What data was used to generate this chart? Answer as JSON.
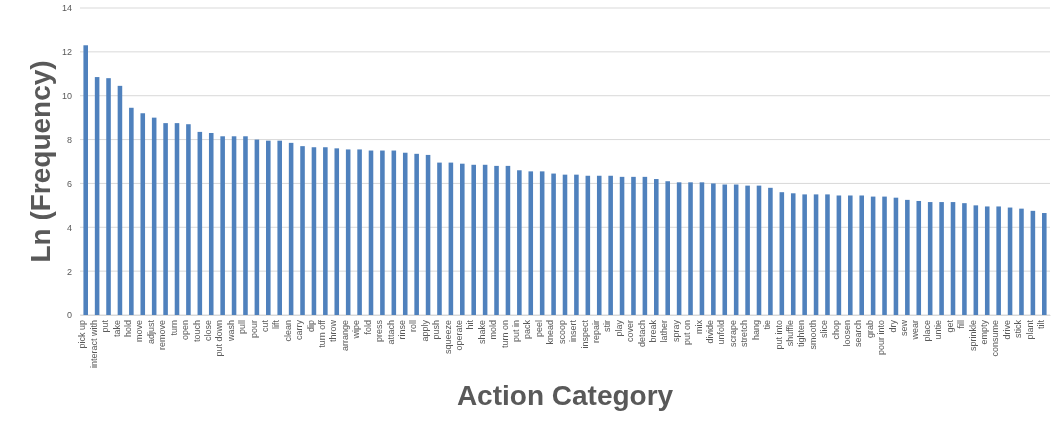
{
  "chart_data": {
    "type": "bar",
    "xlabel": "Action Category",
    "ylabel": "Ln (Frequency)",
    "categories": [
      "pick up",
      "interact with",
      "put",
      "take",
      "hold",
      "move",
      "adjust",
      "remove",
      "turn",
      "open",
      "touch",
      "close",
      "put down",
      "wash",
      "pull",
      "pour",
      "cut",
      "lift",
      "clean",
      "carry",
      "dip",
      "turn off",
      "throw",
      "arrange",
      "wipe",
      "fold",
      "press",
      "attach",
      "rinse",
      "roll",
      "apply",
      "push",
      "squeeze",
      "operate",
      "hit",
      "shake",
      "mold",
      "turn on",
      "put in",
      "pack",
      "peel",
      "knead",
      "scoop",
      "insert",
      "inspect",
      "repair",
      "stir",
      "play",
      "cover",
      "detach",
      "break",
      "lather",
      "spray",
      "put on",
      "mix",
      "divide",
      "unfold",
      "scrape",
      "stretch",
      "hang",
      "tie",
      "put into",
      "shuffle",
      "tighten",
      "smooth",
      "slice",
      "chop",
      "loosen",
      "search",
      "grab",
      "pour into",
      "dry",
      "sew",
      "wear",
      "place",
      "untie",
      "get",
      "fill",
      "sprinkle",
      "empty",
      "consume",
      "drive",
      "stick",
      "plant",
      "tilt"
    ],
    "values": [
      12.3,
      10.85,
      10.8,
      10.45,
      9.45,
      9.2,
      9.0,
      8.75,
      8.75,
      8.7,
      8.35,
      8.3,
      8.15,
      8.15,
      8.15,
      8.0,
      7.95,
      7.95,
      7.85,
      7.7,
      7.65,
      7.65,
      7.6,
      7.55,
      7.55,
      7.5,
      7.5,
      7.5,
      7.4,
      7.35,
      7.3,
      6.95,
      6.95,
      6.9,
      6.85,
      6.85,
      6.8,
      6.8,
      6.6,
      6.55,
      6.55,
      6.45,
      6.4,
      6.4,
      6.35,
      6.35,
      6.35,
      6.3,
      6.3,
      6.3,
      6.2,
      6.1,
      6.05,
      6.05,
      6.05,
      6.0,
      5.95,
      5.95,
      5.9,
      5.9,
      5.8,
      5.6,
      5.55,
      5.5,
      5.5,
      5.5,
      5.45,
      5.45,
      5.45,
      5.4,
      5.4,
      5.35,
      5.25,
      5.2,
      5.15,
      5.15,
      5.15,
      5.1,
      5.0,
      4.95,
      4.95,
      4.9,
      4.85,
      4.75,
      4.65
    ],
    "color": "#4f81bd",
    "ylim": [
      0,
      14
    ],
    "yticks": [
      0,
      2,
      4,
      6,
      8,
      10,
      12,
      14
    ],
    "grid": "y"
  }
}
